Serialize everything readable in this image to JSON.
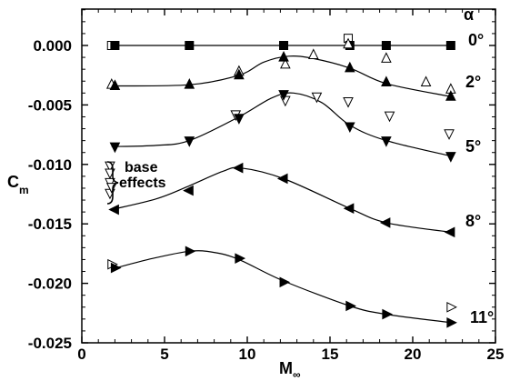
{
  "chart_data": {
    "type": "line",
    "title": "",
    "xlabel_main": "M",
    "xlabel_sub": "∞",
    "ylabel_main": "C",
    "ylabel_sub": "m",
    "xlim": [
      0,
      25
    ],
    "ylim": [
      -0.025,
      0.0015
    ],
    "xticks": [
      0,
      5,
      10,
      15,
      20,
      25
    ],
    "xtick_labels": [
      "0",
      "5",
      "10",
      "15",
      "20",
      "25"
    ],
    "yticks": [
      0,
      -0.005,
      -0.01,
      -0.015,
      -0.02,
      -0.025
    ],
    "ytick_labels": [
      "0.000",
      "-0.005",
      "-0.010",
      "-0.015",
      "-0.020",
      "-0.025"
    ],
    "legend_title": "α",
    "base_effects_label": [
      "base",
      "effects"
    ],
    "series": [
      {
        "name": "0°",
        "marker": "square",
        "curve": [
          [
            2.0,
            0.0
          ],
          [
            22.3,
            0.0
          ]
        ],
        "points": [
          [
            2.0,
            0.0
          ],
          [
            6.5,
            0.0
          ],
          [
            12.2,
            0.0
          ],
          [
            16.2,
            0.0
          ],
          [
            18.4,
            0.0
          ],
          [
            22.3,
            0.0
          ]
        ],
        "open": [
          [
            1.8,
            0.0
          ],
          [
            16.1,
            0.0006
          ]
        ]
      },
      {
        "name": "2°",
        "marker": "triangle-up",
        "curve": [
          [
            1.8,
            -0.0034
          ],
          [
            6.5,
            -0.0033
          ],
          [
            9.5,
            -0.0025
          ],
          [
            11.0,
            -0.0014
          ],
          [
            12.5,
            -0.0009
          ],
          [
            14.0,
            -0.0011
          ],
          [
            16.2,
            -0.0019
          ],
          [
            18.4,
            -0.0032
          ],
          [
            22.3,
            -0.0043
          ]
        ],
        "points": [
          [
            2.0,
            -0.0034
          ],
          [
            6.5,
            -0.0033
          ],
          [
            9.5,
            -0.0025
          ],
          [
            12.2,
            -0.001
          ],
          [
            16.2,
            -0.0019
          ],
          [
            18.4,
            -0.0031
          ],
          [
            22.3,
            -0.0043
          ]
        ],
        "open": [
          [
            1.8,
            -0.0033
          ],
          [
            9.5,
            -0.0022
          ],
          [
            12.3,
            -0.0016
          ],
          [
            14.0,
            -0.0008
          ],
          [
            18.4,
            -0.0011
          ],
          [
            20.8,
            -0.0031
          ],
          [
            22.3,
            -0.0037
          ],
          [
            16.1,
            0.0001
          ]
        ]
      },
      {
        "name": "5°",
        "marker": "triangle-down",
        "curve": [
          [
            1.8,
            -0.0085
          ],
          [
            4.5,
            -0.0084
          ],
          [
            6.5,
            -0.008
          ],
          [
            9.5,
            -0.006
          ],
          [
            11.5,
            -0.0044
          ],
          [
            12.8,
            -0.004
          ],
          [
            14.5,
            -0.0048
          ],
          [
            16.2,
            -0.0067
          ],
          [
            18.4,
            -0.008
          ],
          [
            22.3,
            -0.0093
          ]
        ],
        "points": [
          [
            2.0,
            -0.0085
          ],
          [
            6.5,
            -0.008
          ],
          [
            9.5,
            -0.0061
          ],
          [
            12.2,
            -0.0041
          ],
          [
            16.2,
            -0.0068
          ],
          [
            18.4,
            -0.008
          ],
          [
            22.3,
            -0.0093
          ]
        ],
        "open": [
          [
            9.3,
            -0.0058
          ],
          [
            12.3,
            -0.0046
          ],
          [
            14.2,
            -0.0043
          ],
          [
            16.1,
            -0.0047
          ],
          [
            18.6,
            -0.0059
          ],
          [
            22.2,
            -0.0074
          ],
          [
            1.7,
            -0.0101
          ],
          [
            1.7,
            -0.0107
          ],
          [
            1.7,
            -0.0115
          ],
          [
            1.7,
            -0.0124
          ],
          [
            1.8,
            -0.0119
          ]
        ]
      },
      {
        "name": "8°",
        "marker": "triangle-left",
        "curve": [
          [
            1.8,
            -0.0138
          ],
          [
            4.5,
            -0.0129
          ],
          [
            6.5,
            -0.0118
          ],
          [
            8.5,
            -0.0106
          ],
          [
            9.6,
            -0.0103
          ],
          [
            12.2,
            -0.0112
          ],
          [
            16.2,
            -0.0137
          ],
          [
            18.4,
            -0.0149
          ],
          [
            22.3,
            -0.0157
          ]
        ],
        "points": [
          [
            2.0,
            -0.0138
          ],
          [
            6.5,
            -0.0122
          ],
          [
            9.5,
            -0.0103
          ],
          [
            12.2,
            -0.0112
          ],
          [
            16.2,
            -0.0137
          ],
          [
            18.4,
            -0.0149
          ],
          [
            22.3,
            -0.0157
          ]
        ],
        "open": []
      },
      {
        "name": "11°",
        "marker": "triangle-right",
        "curve": [
          [
            1.8,
            -0.0188
          ],
          [
            4.0,
            -0.018
          ],
          [
            6.5,
            -0.0173
          ],
          [
            8.0,
            -0.0174
          ],
          [
            9.5,
            -0.018
          ],
          [
            12.2,
            -0.0198
          ],
          [
            16.2,
            -0.0219
          ],
          [
            18.4,
            -0.0226
          ],
          [
            22.3,
            -0.0233
          ]
        ],
        "points": [
          [
            2.0,
            -0.0187
          ],
          [
            6.5,
            -0.0173
          ],
          [
            9.5,
            -0.0179
          ],
          [
            12.2,
            -0.0199
          ],
          [
            16.2,
            -0.0219
          ],
          [
            18.4,
            -0.0226
          ],
          [
            22.3,
            -0.0233
          ]
        ],
        "open": [
          [
            1.8,
            -0.0184
          ],
          [
            22.3,
            -0.022
          ]
        ]
      }
    ]
  }
}
